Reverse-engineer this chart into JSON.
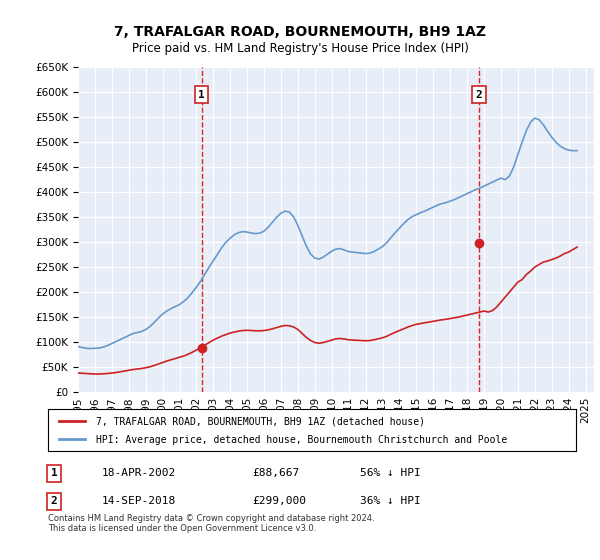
{
  "title": "7, TRAFALGAR ROAD, BOURNEMOUTH, BH9 1AZ",
  "subtitle": "Price paid vs. HM Land Registry's House Price Index (HPI)",
  "ylim": [
    0,
    650000
  ],
  "yticks": [
    0,
    50000,
    100000,
    150000,
    200000,
    250000,
    300000,
    350000,
    400000,
    450000,
    500000,
    550000,
    600000,
    650000
  ],
  "xlim_start": 1995.0,
  "xlim_end": 2025.5,
  "plot_bg_color": "#e8eef8",
  "grid_color": "#ffffff",
  "transaction1_x": 2002.3,
  "transaction1_y": 88667,
  "transaction2_x": 2018.71,
  "transaction2_y": 299000,
  "transaction1_label": "1",
  "transaction2_label": "2",
  "hpi_line_color": "#6699cc",
  "price_line_color": "#cc2222",
  "dashed_line_color": "#dd2222",
  "legend_line1": "7, TRAFALGAR ROAD, BOURNEMOUTH, BH9 1AZ (detached house)",
  "legend_line2": "HPI: Average price, detached house, Bournemouth Christchurch and Poole",
  "table_row1_num": "1",
  "table_row1_date": "18-APR-2002",
  "table_row1_price": "£88,667",
  "table_row1_hpi": "56% ↓ HPI",
  "table_row2_num": "2",
  "table_row2_date": "14-SEP-2018",
  "table_row2_price": "£299,000",
  "table_row2_hpi": "36% ↓ HPI",
  "footer": "Contains HM Land Registry data © Crown copyright and database right 2024.\nThis data is licensed under the Open Government Licence v3.0.",
  "hpi_data_years": [
    1995.0,
    1995.25,
    1995.5,
    1995.75,
    1996.0,
    1996.25,
    1996.5,
    1996.75,
    1997.0,
    1997.25,
    1997.5,
    1997.75,
    1998.0,
    1998.25,
    1998.5,
    1998.75,
    1999.0,
    1999.25,
    1999.5,
    1999.75,
    2000.0,
    2000.25,
    2000.5,
    2000.75,
    2001.0,
    2001.25,
    2001.5,
    2001.75,
    2002.0,
    2002.25,
    2002.5,
    2002.75,
    2003.0,
    2003.25,
    2003.5,
    2003.75,
    2004.0,
    2004.25,
    2004.5,
    2004.75,
    2005.0,
    2005.25,
    2005.5,
    2005.75,
    2006.0,
    2006.25,
    2006.5,
    2006.75,
    2007.0,
    2007.25,
    2007.5,
    2007.75,
    2008.0,
    2008.25,
    2008.5,
    2008.75,
    2009.0,
    2009.25,
    2009.5,
    2009.75,
    2010.0,
    2010.25,
    2010.5,
    2010.75,
    2011.0,
    2011.25,
    2011.5,
    2011.75,
    2012.0,
    2012.25,
    2012.5,
    2012.75,
    2013.0,
    2013.25,
    2013.5,
    2013.75,
    2014.0,
    2014.25,
    2014.5,
    2014.75,
    2015.0,
    2015.25,
    2015.5,
    2015.75,
    2016.0,
    2016.25,
    2016.5,
    2016.75,
    2017.0,
    2017.25,
    2017.5,
    2017.75,
    2018.0,
    2018.25,
    2018.5,
    2018.75,
    2019.0,
    2019.25,
    2019.5,
    2019.75,
    2020.0,
    2020.25,
    2020.5,
    2020.75,
    2021.0,
    2021.25,
    2021.5,
    2021.75,
    2022.0,
    2022.25,
    2022.5,
    2022.75,
    2023.0,
    2023.25,
    2023.5,
    2023.75,
    2024.0,
    2024.25,
    2024.5
  ],
  "hpi_data_values": [
    91000,
    89000,
    87500,
    87000,
    87500,
    88000,
    90000,
    93000,
    97000,
    101000,
    105000,
    109000,
    113000,
    117000,
    119000,
    121000,
    125000,
    131000,
    139000,
    148000,
    156000,
    162000,
    167000,
    171000,
    175000,
    181000,
    189000,
    199000,
    210000,
    222000,
    236000,
    250000,
    263000,
    276000,
    289000,
    300000,
    308000,
    315000,
    319000,
    321000,
    320000,
    318000,
    317000,
    318000,
    322000,
    330000,
    340000,
    350000,
    358000,
    362000,
    360000,
    350000,
    333000,
    312000,
    292000,
    276000,
    268000,
    266000,
    270000,
    276000,
    282000,
    286000,
    287000,
    284000,
    281000,
    280000,
    279000,
    278000,
    277000,
    278000,
    281000,
    286000,
    291000,
    299000,
    309000,
    319000,
    328000,
    337000,
    345000,
    351000,
    355000,
    359000,
    362000,
    366000,
    370000,
    374000,
    377000,
    379000,
    382000,
    385000,
    389000,
    393000,
    397000,
    401000,
    405000,
    408000,
    412000,
    416000,
    420000,
    424000,
    428000,
    425000,
    432000,
    450000,
    475000,
    500000,
    523000,
    540000,
    548000,
    545000,
    535000,
    522000,
    510000,
    500000,
    492000,
    487000,
    484000,
    483000,
    483000
  ],
  "price_data_years": [
    1995.0,
    1995.25,
    1995.5,
    1995.75,
    1996.0,
    1996.25,
    1996.5,
    1996.75,
    1997.0,
    1997.25,
    1997.5,
    1997.75,
    1998.0,
    1998.25,
    1998.5,
    1998.75,
    1999.0,
    1999.25,
    1999.5,
    1999.75,
    2000.0,
    2000.25,
    2000.5,
    2000.75,
    2001.0,
    2001.25,
    2001.5,
    2001.75,
    2002.0,
    2002.25,
    2002.5,
    2002.75,
    2003.0,
    2003.25,
    2003.5,
    2003.75,
    2004.0,
    2004.25,
    2004.5,
    2004.75,
    2005.0,
    2005.25,
    2005.5,
    2005.75,
    2006.0,
    2006.25,
    2006.5,
    2006.75,
    2007.0,
    2007.25,
    2007.5,
    2007.75,
    2008.0,
    2008.25,
    2008.5,
    2008.75,
    2009.0,
    2009.25,
    2009.5,
    2009.75,
    2010.0,
    2010.25,
    2010.5,
    2010.75,
    2011.0,
    2011.25,
    2011.5,
    2011.75,
    2012.0,
    2012.25,
    2012.5,
    2012.75,
    2013.0,
    2013.25,
    2013.5,
    2013.75,
    2014.0,
    2014.25,
    2014.5,
    2014.75,
    2015.0,
    2015.25,
    2015.5,
    2015.75,
    2016.0,
    2016.25,
    2016.5,
    2016.75,
    2017.0,
    2017.25,
    2017.5,
    2017.75,
    2018.0,
    2018.25,
    2018.5,
    2018.75,
    2019.0,
    2019.25,
    2019.5,
    2019.75,
    2020.0,
    2020.25,
    2020.5,
    2020.75,
    2021.0,
    2021.25,
    2021.5,
    2021.75,
    2022.0,
    2022.25,
    2022.5,
    2022.75,
    2023.0,
    2023.25,
    2023.5,
    2023.75,
    2024.0,
    2024.25,
    2024.5
  ],
  "price_data_values": [
    38000,
    37500,
    37000,
    36500,
    36000,
    36000,
    36500,
    37000,
    38000,
    39000,
    40500,
    42000,
    43500,
    45000,
    46000,
    47000,
    48500,
    50500,
    53000,
    56000,
    59000,
    62000,
    64500,
    67000,
    69500,
    72000,
    75500,
    79500,
    84000,
    89000,
    94000,
    99000,
    104000,
    108000,
    112000,
    115000,
    118000,
    120000,
    122000,
    123000,
    123500,
    123000,
    122500,
    122500,
    123000,
    124500,
    126500,
    129000,
    131500,
    133000,
    132500,
    130000,
    125000,
    117000,
    109000,
    103000,
    99000,
    97500,
    99000,
    101500,
    104000,
    106500,
    107000,
    106000,
    104500,
    104000,
    103500,
    103000,
    102500,
    103000,
    104500,
    106500,
    108500,
    111500,
    115500,
    119500,
    123000,
    126500,
    130000,
    133000,
    135500,
    137000,
    138500,
    140000,
    141500,
    143000,
    144500,
    145500,
    147000,
    148500,
    150000,
    152000,
    154000,
    156000,
    158000,
    160000,
    162000,
    160000,
    163000,
    170000,
    180000,
    190000,
    200000,
    210000,
    220000,
    225000,
    235000,
    242000,
    250000,
    255000,
    260000,
    262000,
    265000,
    268000,
    272000,
    277000,
    280000,
    285000,
    290000
  ],
  "xticks": [
    1995,
    1996,
    1997,
    1998,
    1999,
    2000,
    2001,
    2002,
    2003,
    2004,
    2005,
    2006,
    2007,
    2008,
    2009,
    2010,
    2011,
    2012,
    2013,
    2014,
    2015,
    2016,
    2017,
    2018,
    2019,
    2020,
    2021,
    2022,
    2023,
    2024,
    2025
  ]
}
